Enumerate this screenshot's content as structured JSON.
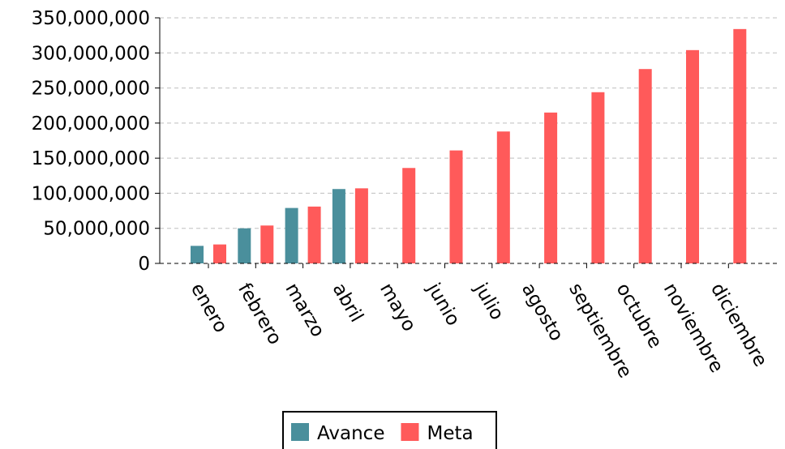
{
  "chart_data": {
    "type": "bar",
    "title": "",
    "xlabel": "",
    "ylabel": "",
    "categories": [
      "enero",
      "febrero",
      "marzo",
      "abril",
      "mayo",
      "junio",
      "julio",
      "agosto",
      "septiembre",
      "octubre",
      "noviembre",
      "diciembre"
    ],
    "series": [
      {
        "name": "Avance",
        "color": "#4a8f9c",
        "values": [
          25000000,
          50000000,
          79000000,
          106000000,
          null,
          null,
          null,
          null,
          null,
          null,
          null,
          null
        ]
      },
      {
        "name": "Meta",
        "color": "#ff5a5a",
        "values": [
          27000000,
          54000000,
          81000000,
          107000000,
          136000000,
          161000000,
          188000000,
          215000000,
          244000000,
          277000000,
          304000000,
          334000000
        ]
      }
    ],
    "ylim": [
      0,
      350000000
    ],
    "yticks": [
      0,
      50000000,
      100000000,
      150000000,
      200000000,
      250000000,
      300000000,
      350000000
    ],
    "ytick_labels": [
      "0",
      "50,000,000",
      "100,000,000",
      "150,000,000",
      "200,000,000",
      "250,000,000",
      "300,000,000",
      "350,000,000"
    ],
    "grid": true,
    "legend_position": "bottom-center"
  }
}
